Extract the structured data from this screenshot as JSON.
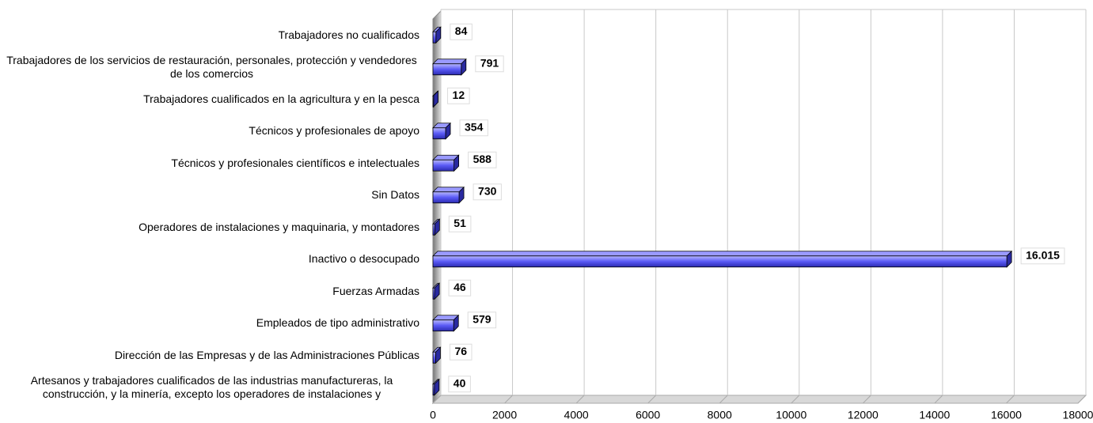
{
  "chart_data": {
    "type": "bar",
    "orientation": "horizontal",
    "categories": [
      "Trabajadores no cualificados",
      "Trabajadores de los servicios de restauración, personales, protección y vendedores de los comercios",
      "Trabajadores cualificados en la agricultura y en la pesca",
      "Técnicos y profesionales de apoyo",
      "Técnicos y profesionales científicos e intelectuales",
      "Sin Datos",
      "Operadores de instalaciones y maquinaria, y montadores",
      "Inactivo o desocupado",
      "Fuerzas Armadas",
      "Empleados de tipo administrativo",
      "Dirección de las Empresas y de las Administraciones Públicas",
      "Artesanos y trabajadores cualificados de las industrias manufactureras, la construcción, y la minería, excepto los operadores de instalaciones y"
    ],
    "values": [
      84,
      791,
      12,
      354,
      588,
      730,
      51,
      16015,
      46,
      579,
      76,
      40
    ],
    "value_labels": [
      "84",
      "791",
      "12",
      "354",
      "588",
      "730",
      "51",
      "16.015",
      "46",
      "579",
      "76",
      "40"
    ],
    "color": "#4b4bf5",
    "xlim": [
      0,
      18000
    ],
    "xticks": [
      0,
      2000,
      4000,
      6000,
      8000,
      10000,
      12000,
      14000,
      16000,
      18000
    ],
    "grid": true
  }
}
